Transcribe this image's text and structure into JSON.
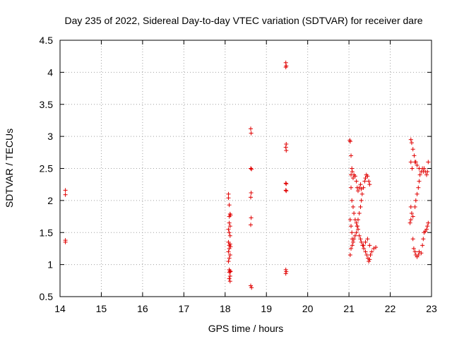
{
  "chart_data": {
    "type": "scatter",
    "title": "Day 235 of 2022, Sidereal Day-to-day VTEC variation (SDTVAR) for receiver dare",
    "xlabel": "GPS time / hours",
    "ylabel": "SDTVAR / TECUs",
    "xlim": [
      14,
      23
    ],
    "ylim": [
      0.5,
      4.5
    ],
    "xticks": [
      14,
      15,
      16,
      17,
      18,
      19,
      20,
      21,
      22,
      23
    ],
    "yticks": [
      0.5,
      1,
      1.5,
      2,
      2.5,
      3,
      3.5,
      4,
      4.5
    ],
    "ytick_labels": [
      "0.5",
      "1",
      "1.5",
      "2",
      "2.5",
      "3",
      "3.5",
      "4",
      "4.5"
    ],
    "grid": true,
    "marker": "+",
    "colors": {
      "series": "#e00000",
      "grid": "#a0a0a0",
      "axis": "#000000"
    },
    "series": [
      {
        "name": "SDTVAR",
        "points": [
          [
            14.13,
            2.16
          ],
          [
            14.13,
            2.09
          ],
          [
            14.13,
            1.38
          ],
          [
            14.13,
            1.35
          ],
          [
            18.08,
            2.1
          ],
          [
            18.08,
            2.04
          ],
          [
            18.1,
            1.93
          ],
          [
            18.12,
            1.79
          ],
          [
            18.1,
            1.75
          ],
          [
            18.13,
            1.77
          ],
          [
            18.1,
            1.65
          ],
          [
            18.12,
            1.6
          ],
          [
            18.08,
            1.55
          ],
          [
            18.1,
            1.5
          ],
          [
            18.12,
            1.45
          ],
          [
            18.08,
            1.35
          ],
          [
            18.12,
            1.32
          ],
          [
            18.1,
            1.3
          ],
          [
            18.13,
            1.28
          ],
          [
            18.1,
            1.25
          ],
          [
            18.08,
            1.2
          ],
          [
            18.12,
            1.15
          ],
          [
            18.1,
            1.1
          ],
          [
            18.08,
            1.05
          ],
          [
            18.1,
            0.92
          ],
          [
            18.12,
            0.9
          ],
          [
            18.13,
            0.89
          ],
          [
            18.1,
            0.88
          ],
          [
            18.12,
            0.82
          ],
          [
            18.1,
            0.78
          ],
          [
            18.12,
            0.74
          ],
          [
            18.62,
            3.12
          ],
          [
            18.63,
            3.05
          ],
          [
            18.62,
            2.5
          ],
          [
            18.64,
            2.49
          ],
          [
            18.63,
            2.12
          ],
          [
            18.62,
            2.05
          ],
          [
            18.63,
            1.73
          ],
          [
            18.62,
            1.62
          ],
          [
            18.62,
            0.67
          ],
          [
            18.64,
            0.64
          ],
          [
            19.47,
            4.15
          ],
          [
            19.48,
            4.1
          ],
          [
            19.47,
            4.08
          ],
          [
            19.48,
            2.88
          ],
          [
            19.47,
            2.83
          ],
          [
            19.48,
            2.78
          ],
          [
            19.47,
            2.27
          ],
          [
            19.48,
            2.26
          ],
          [
            19.47,
            2.16
          ],
          [
            19.48,
            2.15
          ],
          [
            19.47,
            0.92
          ],
          [
            19.48,
            0.89
          ],
          [
            19.47,
            0.86
          ],
          [
            21.02,
            2.94
          ],
          [
            21.03,
            2.92
          ],
          [
            21.05,
            2.7
          ],
          [
            21.07,
            2.5
          ],
          [
            21.08,
            2.45
          ],
          [
            21.05,
            2.4
          ],
          [
            21.1,
            2.35
          ],
          [
            21.12,
            2.4
          ],
          [
            21.15,
            2.38
          ],
          [
            21.18,
            2.3
          ],
          [
            21.2,
            2.2
          ],
          [
            21.22,
            2.15
          ],
          [
            21.25,
            2.2
          ],
          [
            21.28,
            2.25
          ],
          [
            21.3,
            2.18
          ],
          [
            21.32,
            2.1
          ],
          [
            21.35,
            2.2
          ],
          [
            21.38,
            2.3
          ],
          [
            21.4,
            2.35
          ],
          [
            21.42,
            2.4
          ],
          [
            21.45,
            2.38
          ],
          [
            21.48,
            2.3
          ],
          [
            21.5,
            2.25
          ],
          [
            21.05,
            2.2
          ],
          [
            21.07,
            2.0
          ],
          [
            21.1,
            1.9
          ],
          [
            21.12,
            1.8
          ],
          [
            21.15,
            1.7
          ],
          [
            21.18,
            1.65
          ],
          [
            21.2,
            1.6
          ],
          [
            21.22,
            1.55
          ],
          [
            21.25,
            1.45
          ],
          [
            21.28,
            1.4
          ],
          [
            21.3,
            1.35
          ],
          [
            21.33,
            1.3
          ],
          [
            21.36,
            1.25
          ],
          [
            21.4,
            1.2
          ],
          [
            21.43,
            1.15
          ],
          [
            21.46,
            1.1
          ],
          [
            21.48,
            1.05
          ],
          [
            21.5,
            1.08
          ],
          [
            21.52,
            1.15
          ],
          [
            21.55,
            1.2
          ],
          [
            21.6,
            1.25
          ],
          [
            21.65,
            1.27
          ],
          [
            21.03,
            1.7
          ],
          [
            21.05,
            1.6
          ],
          [
            21.07,
            1.5
          ],
          [
            21.08,
            1.4
          ],
          [
            21.1,
            1.35
          ],
          [
            21.12,
            1.4
          ],
          [
            21.15,
            1.45
          ],
          [
            21.18,
            1.5
          ],
          [
            21.2,
            1.6
          ],
          [
            21.22,
            1.7
          ],
          [
            21.25,
            1.8
          ],
          [
            21.28,
            1.9
          ],
          [
            21.3,
            2.0
          ],
          [
            21.03,
            1.15
          ],
          [
            21.05,
            1.25
          ],
          [
            21.08,
            1.3
          ],
          [
            21.35,
            1.3
          ],
          [
            21.4,
            1.35
          ],
          [
            21.45,
            1.4
          ],
          [
            21.5,
            1.3
          ],
          [
            22.5,
            2.95
          ],
          [
            22.52,
            2.9
          ],
          [
            22.55,
            2.8
          ],
          [
            22.58,
            2.7
          ],
          [
            22.6,
            2.6
          ],
          [
            22.5,
            2.6
          ],
          [
            22.53,
            2.5
          ],
          [
            22.5,
            1.9
          ],
          [
            22.52,
            1.8
          ],
          [
            22.55,
            1.75
          ],
          [
            22.5,
            1.7
          ],
          [
            22.48,
            1.65
          ],
          [
            22.55,
            1.4
          ],
          [
            22.57,
            1.25
          ],
          [
            22.6,
            1.2
          ],
          [
            22.62,
            1.15
          ],
          [
            22.65,
            1.12
          ],
          [
            22.68,
            1.15
          ],
          [
            22.7,
            1.2
          ],
          [
            22.75,
            1.18
          ],
          [
            22.6,
            1.9
          ],
          [
            22.62,
            2.0
          ],
          [
            22.65,
            2.1
          ],
          [
            22.68,
            2.2
          ],
          [
            22.7,
            2.3
          ],
          [
            22.72,
            2.4
          ],
          [
            22.75,
            2.45
          ],
          [
            22.78,
            2.5
          ],
          [
            22.8,
            2.45
          ],
          [
            22.82,
            2.5
          ],
          [
            22.85,
            2.45
          ],
          [
            22.88,
            2.4
          ],
          [
            22.9,
            2.45
          ],
          [
            22.92,
            2.6
          ],
          [
            22.7,
            2.5
          ],
          [
            22.65,
            2.55
          ],
          [
            22.62,
            2.6
          ],
          [
            22.78,
            1.3
          ],
          [
            22.8,
            1.4
          ],
          [
            22.82,
            1.5
          ],
          [
            22.85,
            1.52
          ],
          [
            22.88,
            1.55
          ],
          [
            22.9,
            1.6
          ],
          [
            22.92,
            1.65
          ]
        ]
      }
    ]
  }
}
